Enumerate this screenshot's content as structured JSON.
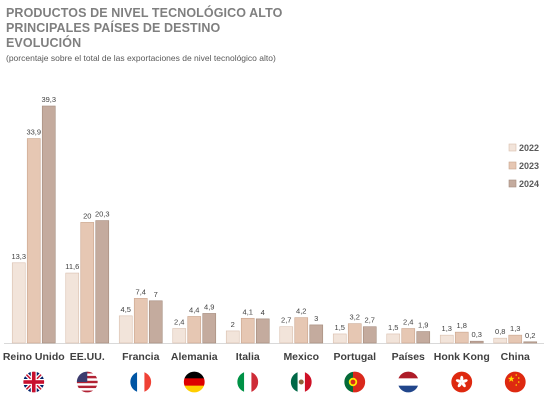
{
  "chart_data": {
    "type": "bar",
    "title": [
      "PRODUCTOS DE NIVEL TECNOLÓGICO ALTO",
      "PRINCIPALES PAÍSES DE DESTINO",
      "EVOLUCIÓN"
    ],
    "subtitle": "(porcentaje sobre el total de las exportaciones de nivel tecnológico alto)",
    "categories": [
      "Reino Unido",
      "EE.UU.",
      "Francia",
      "Alemania",
      "Italia",
      "Mexico",
      "Portugal",
      "Países",
      "Honk Kong",
      "China"
    ],
    "series": [
      {
        "name": "2022",
        "color": "#f2e4da",
        "border": "#d9bfae",
        "values": [
          13.3,
          11.6,
          4.5,
          2.4,
          2,
          2.7,
          1.5,
          1.5,
          1.3,
          0.8
        ]
      },
      {
        "name": "2023",
        "color": "#e6c7b3",
        "border": "#c9a48c",
        "values": [
          33.9,
          20,
          7.4,
          4.4,
          4.1,
          4.2,
          3.2,
          2.4,
          1.8,
          1.3
        ]
      },
      {
        "name": "2024",
        "color": "#c4ab9e",
        "border": "#a38a7c",
        "values": [
          39.3,
          20.3,
          7,
          4.9,
          4,
          3,
          2.7,
          1.9,
          0.3,
          0.2
        ]
      }
    ],
    "value_labels": [
      [
        "13,3",
        "11,6",
        "4,5",
        "2,4",
        "2",
        "2,7",
        "1,5",
        "1,5",
        "1,3",
        "0,8"
      ],
      [
        "33,9",
        "20",
        "7,4",
        "4,4",
        "4,1",
        "4,2",
        "3,2",
        "2,4",
        "1,8",
        "1,3"
      ],
      [
        "39,3",
        "20,3",
        "7",
        "4,9",
        "4",
        "3",
        "2,7",
        "1,9",
        "0,3",
        "0,2"
      ]
    ],
    "ylim": [
      0,
      39.3
    ],
    "grid": false,
    "legend_position": "right",
    "flags": [
      "flag-uk-icon",
      "flag-us-icon",
      "flag-france-icon",
      "flag-germany-icon",
      "flag-italy-icon",
      "flag-mexico-icon",
      "flag-portugal-icon",
      "flag-netherlands-icon",
      "flag-hongkong-icon",
      "flag-china-icon"
    ]
  }
}
